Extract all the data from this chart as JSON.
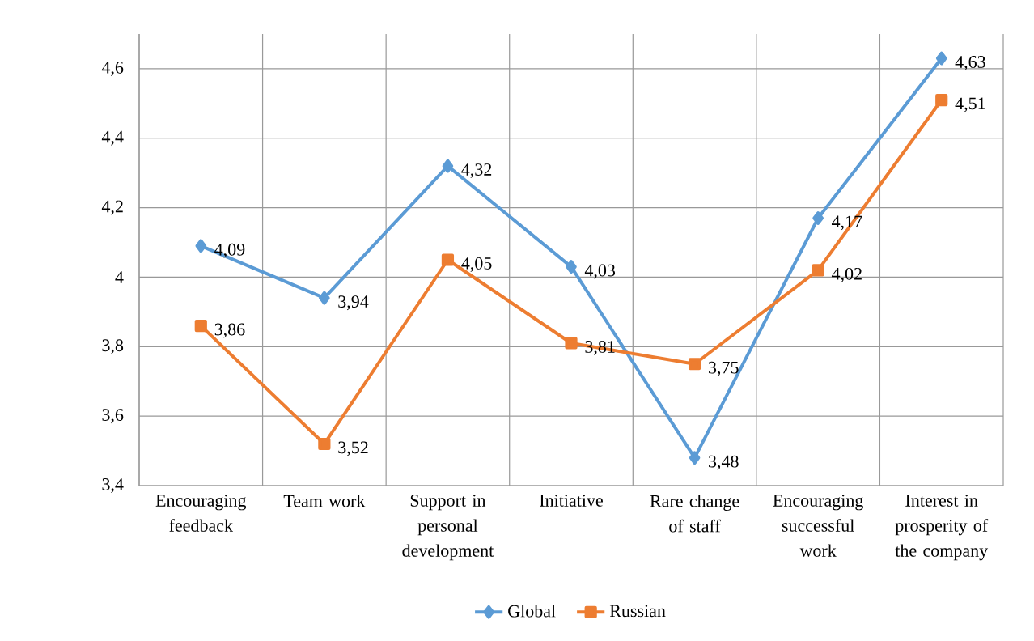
{
  "chart_data": {
    "type": "line",
    "categories": [
      "Encouraging feedback",
      "Team work",
      "Support in personal development",
      "Initiative",
      "Rare change of staff",
      "Encouraging successful work",
      "Interest in prosperity of the company"
    ],
    "series": [
      {
        "name": "Global",
        "color": "#5b9bd5",
        "marker": "diamond",
        "values": [
          4.09,
          3.94,
          4.32,
          4.03,
          3.48,
          4.17,
          4.63
        ],
        "value_labels": [
          "4,09",
          "3,94",
          "4,32",
          "4,03",
          "3,48",
          "4,17",
          "4,63"
        ]
      },
      {
        "name": "Russian",
        "color": "#ed7d31",
        "marker": "square",
        "values": [
          3.86,
          3.52,
          4.05,
          3.81,
          3.75,
          4.02,
          4.51
        ],
        "value_labels": [
          "3,86",
          "3,52",
          "4,05",
          "3,81",
          "3,75",
          "4,02",
          "4,51"
        ]
      }
    ],
    "ylim": [
      3.4,
      4.7
    ],
    "yticks": [
      {
        "value": 3.4,
        "label": "3,4"
      },
      {
        "value": 3.6,
        "label": "3,6"
      },
      {
        "value": 3.8,
        "label": "3,8"
      },
      4,
      {
        "value": 4.2,
        "label": "4,2"
      },
      {
        "value": 4.4,
        "label": "4,4"
      },
      {
        "value": 4.6,
        "label": "4,6"
      }
    ],
    "grid": true,
    "legend": "bottom",
    "line_style": "solid"
  }
}
